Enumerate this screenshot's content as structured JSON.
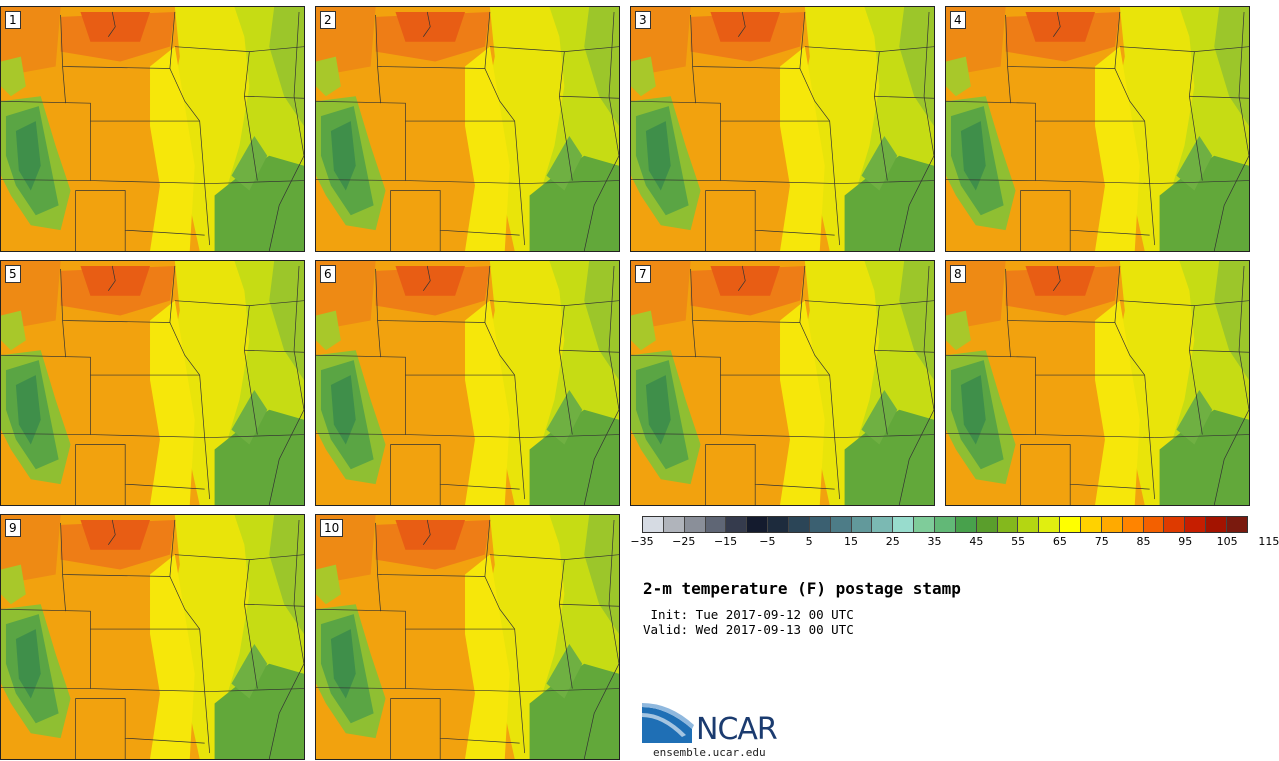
{
  "stamps": [
    {
      "label": "1"
    },
    {
      "label": "2"
    },
    {
      "label": "3"
    },
    {
      "label": "4"
    },
    {
      "label": "5"
    },
    {
      "label": "6"
    },
    {
      "label": "7"
    },
    {
      "label": "8"
    },
    {
      "label": "9"
    },
    {
      "label": "10"
    }
  ],
  "colorbar": {
    "colors": [
      "#d6dbe3",
      "#b0b4bb",
      "#8a8f99",
      "#5f6675",
      "#353b4d",
      "#141b2e",
      "#1d2b3d",
      "#2b4557",
      "#3b6071",
      "#4d7c87",
      "#62999b",
      "#7bb9b3",
      "#98dccd",
      "#7fcc9a",
      "#62b877",
      "#48a14c",
      "#5a9e2c",
      "#84b81d",
      "#b4d612",
      "#e0ef10",
      "#ffff00",
      "#ffd200",
      "#ffaa00",
      "#ff8400",
      "#f36000",
      "#de3a00",
      "#c61e00",
      "#a31300",
      "#7a1a0e"
    ],
    "tick_labels": [
      "−35",
      "−25",
      "−15",
      "−5",
      "5",
      "15",
      "25",
      "35",
      "45",
      "55",
      "65",
      "75",
      "85",
      "95",
      "105",
      "115"
    ]
  },
  "title": "2-m temperature (F) postage stamp",
  "init_line": " Init: Tue 2017-09-12 00 UTC",
  "valid_line": "Valid: Wed 2017-09-13 00 UTC",
  "logo": {
    "text": "NCAR",
    "url": "ensemble.ucar.edu"
  }
}
